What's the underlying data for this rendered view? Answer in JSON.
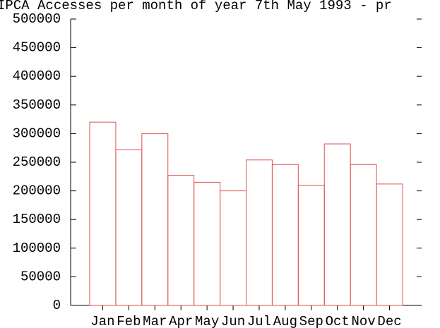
{
  "chart_data": {
    "type": "bar",
    "title": "IPCA Accesses per month of year 7th May 1993 - pr",
    "categories": [
      "Jan",
      "Feb",
      "Mar",
      "Apr",
      "May",
      "Jun",
      "Jul",
      "Aug",
      "Sep",
      "Oct",
      "Nov",
      "Dec"
    ],
    "values": [
      320000,
      272000,
      300000,
      227000,
      215000,
      200000,
      254000,
      246000,
      210000,
      282000,
      246000,
      212000
    ],
    "color": "#e05050",
    "ylim": [
      0,
      500000
    ],
    "yticks": [
      0,
      50000,
      100000,
      150000,
      200000,
      250000,
      300000,
      350000,
      400000,
      450000,
      500000
    ],
    "grid": false
  }
}
